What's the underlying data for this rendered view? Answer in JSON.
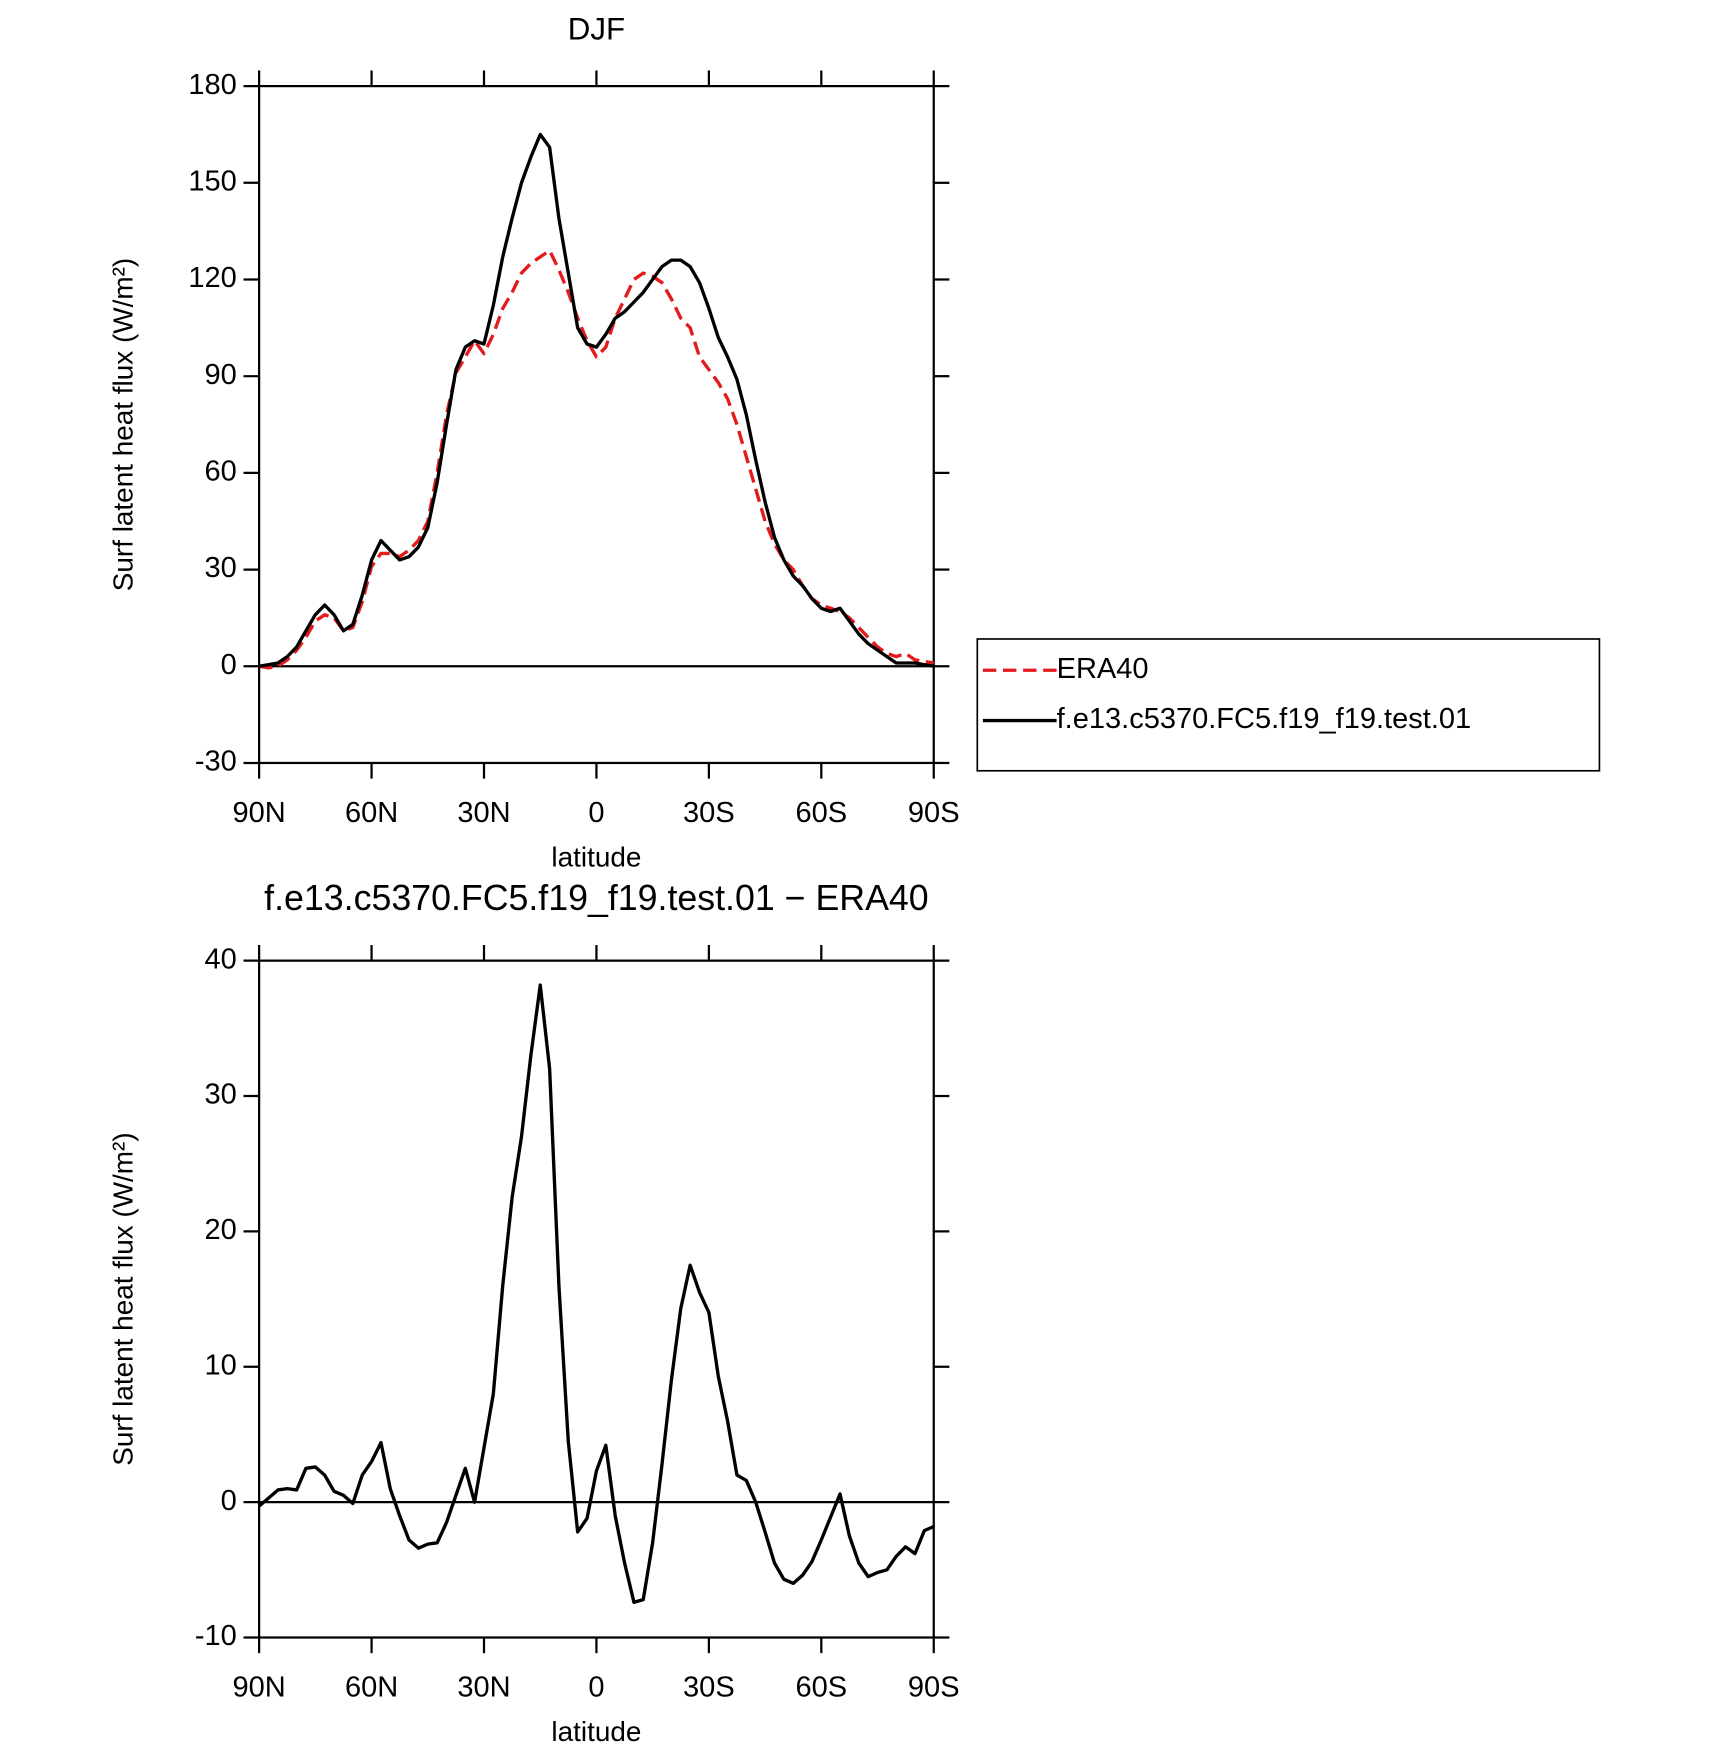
{
  "chart_data": [
    {
      "type": "line",
      "title": "DJF",
      "xlabel": "latitude",
      "ylabel": "Surf latent heat flux (W/m²)",
      "x": [
        90,
        87.5,
        85,
        82.5,
        80,
        77.5,
        75,
        72.5,
        70,
        67.5,
        65,
        62.5,
        60,
        57.5,
        55,
        52.5,
        50,
        47.5,
        45,
        42.5,
        40,
        37.5,
        35,
        32.5,
        30,
        27.5,
        25,
        22.5,
        20,
        17.5,
        15,
        12.5,
        10,
        7.5,
        5,
        2.5,
        0,
        -2.5,
        -5,
        -7.5,
        -10,
        -12.5,
        -15,
        -17.5,
        -20,
        -22.5,
        -25,
        -27.5,
        -30,
        -32.5,
        -35,
        -37.5,
        -40,
        -42.5,
        -45,
        -47.5,
        -50,
        -52.5,
        -55,
        -57.5,
        -60,
        -62.5,
        -65,
        -67.5,
        -70,
        -72.5,
        -75,
        -77.5,
        -80,
        -82.5,
        -85,
        -87.5,
        -90
      ],
      "series": [
        {
          "name": "ERA40",
          "color": "#e41a1c",
          "dash": true,
          "values": [
            0,
            -0.5,
            0,
            2,
            5,
            9,
            14,
            16,
            15,
            11,
            12,
            20,
            31,
            35,
            35,
            34,
            36,
            39,
            45,
            60,
            78,
            91,
            96,
            101,
            97,
            103,
            111,
            116,
            122,
            125,
            127,
            129,
            123,
            116,
            108,
            101,
            96,
            99,
            108,
            114,
            120,
            122,
            121,
            119,
            114,
            108,
            105,
            96,
            92,
            88,
            83,
            75,
            65,
            55,
            45,
            38,
            33,
            30,
            25,
            21,
            19,
            18,
            17,
            15,
            12,
            9,
            6,
            4,
            3,
            4,
            2,
            1.5,
            1
          ]
        },
        {
          "name": "f.e13.c5370.FC5.f19_f19.test.01",
          "color": "#000000",
          "dash": false,
          "values": [
            0,
            0.5,
            1,
            3,
            6,
            11,
            16,
            19,
            16,
            11,
            13,
            22,
            33,
            39,
            36,
            33,
            34,
            37,
            43,
            57,
            75,
            92,
            99,
            101,
            100,
            112,
            127,
            139,
            150,
            158,
            165,
            161,
            139,
            122,
            105,
            100,
            99,
            103,
            108,
            110,
            113,
            116,
            120,
            124,
            126,
            126,
            124,
            119,
            111,
            102,
            96,
            89,
            78,
            64,
            51,
            40,
            33,
            28,
            25,
            21,
            18,
            17,
            18,
            14,
            10,
            7,
            5,
            3,
            1,
            1,
            1,
            0.5,
            0
          ]
        }
      ],
      "xlim": [
        90,
        -90
      ],
      "xticks": [
        {
          "value": 90,
          "label": "90N"
        },
        {
          "value": 60,
          "label": "60N"
        },
        {
          "value": 30,
          "label": "30N"
        },
        0,
        {
          "value": -30,
          "label": "30S"
        },
        {
          "value": -60,
          "label": "60S"
        },
        {
          "value": -90,
          "label": "90S"
        }
      ],
      "ylim": [
        -30,
        180
      ],
      "yticks": [
        -30,
        0,
        30,
        60,
        90,
        120,
        150,
        180
      ],
      "zero_line": true,
      "legend": "right"
    },
    {
      "type": "line",
      "title": "f.e13.c5370.FC5.f19_f19.test.01 − ERA40",
      "xlabel": "latitude",
      "ylabel": "Surf latent heat flux (W/m²)",
      "x": [
        90,
        87.5,
        85,
        82.5,
        80,
        77.5,
        75,
        72.5,
        70,
        67.5,
        65,
        62.5,
        60,
        57.5,
        55,
        52.5,
        50,
        47.5,
        45,
        42.5,
        40,
        37.5,
        35,
        32.5,
        30,
        27.5,
        25,
        22.5,
        20,
        17.5,
        15,
        12.5,
        10,
        7.5,
        5,
        2.5,
        0,
        -2.5,
        -5,
        -7.5,
        -10,
        -12.5,
        -15,
        -17.5,
        -20,
        -22.5,
        -25,
        -27.5,
        -30,
        -32.5,
        -35,
        -37.5,
        -40,
        -42.5,
        -45,
        -47.5,
        -50,
        -52.5,
        -55,
        -57.5,
        -60,
        -62.5,
        -65,
        -67.5,
        -70,
        -72.5,
        -75,
        -77.5,
        -80,
        -82.5,
        -85,
        -87.5,
        -90
      ],
      "series": [
        {
          "color": "#000000",
          "dash": false,
          "values": [
            -0.3,
            0.3,
            0.9,
            1,
            0.9,
            2.5,
            2.6,
            2,
            0.8,
            0.5,
            -0.1,
            2,
            3,
            4.4,
            1,
            -1,
            -2.8,
            -3.4,
            -3.1,
            -3,
            -1.5,
            0.5,
            2.5,
            0,
            4,
            8,
            16,
            22.5,
            27,
            33,
            38.2,
            32,
            16,
            4.5,
            -2.2,
            -1.2,
            2.3,
            4.2,
            -1,
            -4.5,
            -7.4,
            -7.2,
            -3,
            2.8,
            9,
            14.3,
            17.5,
            15.5,
            14,
            9.3,
            6,
            2,
            1.6,
            0,
            -2.2,
            -4.5,
            -5.7,
            -6,
            -5.4,
            -4.4,
            -2.8,
            -1.1,
            0.6,
            -2.5,
            -4.5,
            -5.5,
            -5.2,
            -5,
            -4,
            -3.3,
            -3.8,
            -2.1,
            -1.8
          ]
        }
      ],
      "xlim": [
        90,
        -90
      ],
      "xticks": [
        {
          "value": 90,
          "label": "90N"
        },
        {
          "value": 60,
          "label": "60N"
        },
        {
          "value": 30,
          "label": "30N"
        },
        0,
        {
          "value": -30,
          "label": "30S"
        },
        {
          "value": -60,
          "label": "60S"
        },
        {
          "value": -90,
          "label": "90S"
        }
      ],
      "ylim": [
        -10,
        40
      ],
      "yticks": [
        -10,
        0,
        10,
        20,
        30,
        40
      ],
      "zero_line": true
    }
  ]
}
